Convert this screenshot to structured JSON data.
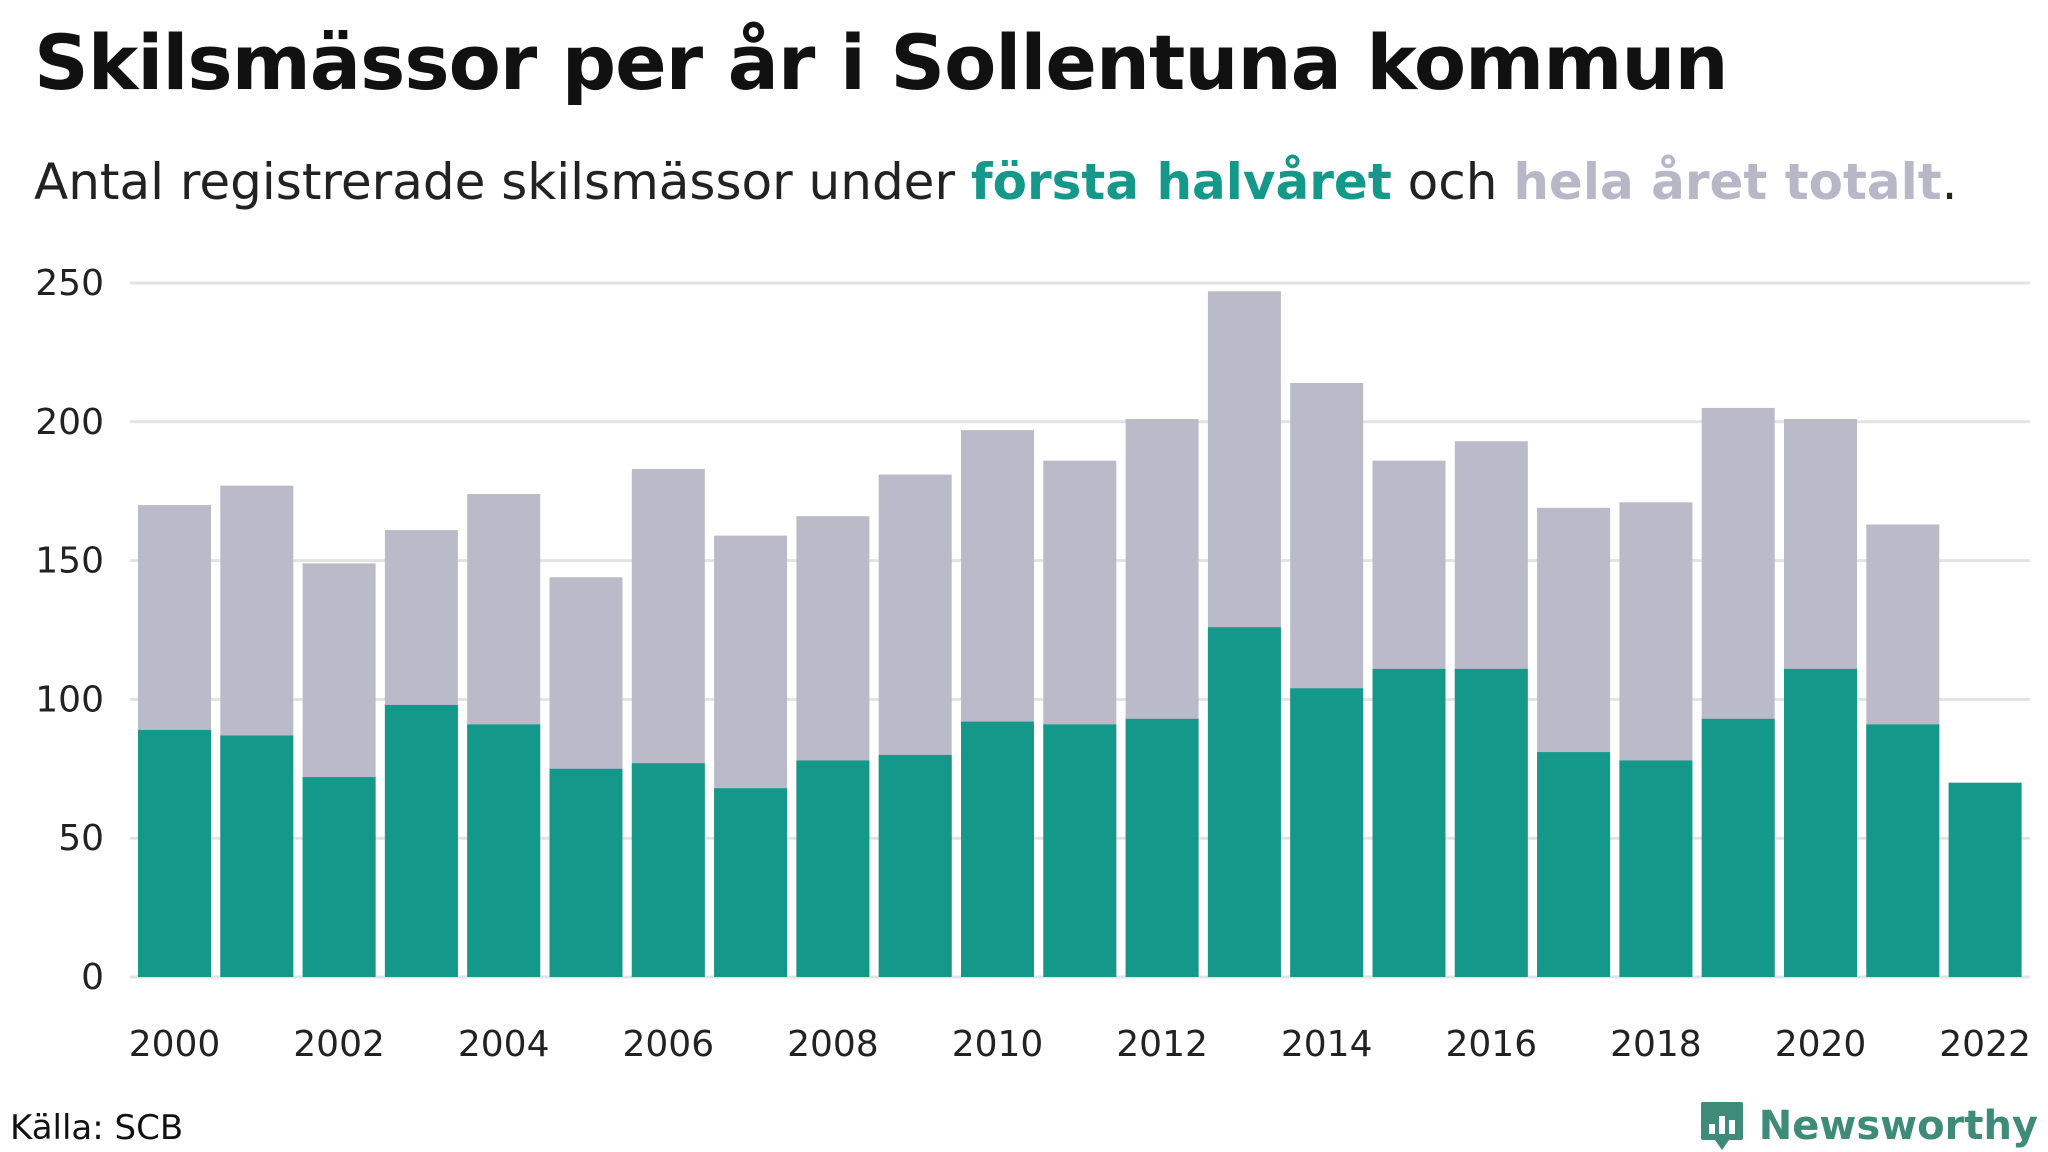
{
  "title": "Skilsmässor per år i Sollentuna kommun",
  "subtitle": {
    "prefix": "Antal registrerade skilsmässor under ",
    "highlight_first": "första halvåret",
    "middle": " och ",
    "highlight_total": "hela året totalt",
    "suffix": "."
  },
  "source": "Källa: SCB",
  "brand": {
    "name": "Newsworthy",
    "icon": "newsworthy-logo-icon"
  },
  "colors": {
    "first_half": "#13988a",
    "total": "#bbbac9",
    "grid": "#e3e3e3",
    "accent_brand": "#3d8b78"
  },
  "chart_data": {
    "type": "bar",
    "categories": [
      "2000",
      "2001",
      "2002",
      "2003",
      "2004",
      "2005",
      "2006",
      "2007",
      "2008",
      "2009",
      "2010",
      "2011",
      "2012",
      "2013",
      "2014",
      "2015",
      "2016",
      "2017",
      "2018",
      "2019",
      "2020",
      "2021",
      "2022"
    ],
    "x_tick_labels": [
      "2000",
      "2002",
      "2004",
      "2006",
      "2008",
      "2010",
      "2012",
      "2014",
      "2016",
      "2018",
      "2020",
      "2022"
    ],
    "series": [
      {
        "name": "hela året totalt",
        "values": [
          170,
          177,
          149,
          161,
          174,
          144,
          183,
          159,
          166,
          181,
          197,
          186,
          201,
          247,
          214,
          186,
          193,
          169,
          171,
          205,
          201,
          163,
          null
        ]
      },
      {
        "name": "första halvåret",
        "values": [
          89,
          87,
          72,
          98,
          91,
          75,
          77,
          68,
          78,
          80,
          92,
          91,
          93,
          126,
          104,
          111,
          111,
          81,
          78,
          93,
          111,
          91,
          70
        ]
      }
    ],
    "overlap": true,
    "xlabel": "",
    "ylabel": "",
    "ylim": [
      0,
      250
    ],
    "yticks": [
      0,
      50,
      100,
      150,
      200,
      250
    ],
    "grid": true
  }
}
